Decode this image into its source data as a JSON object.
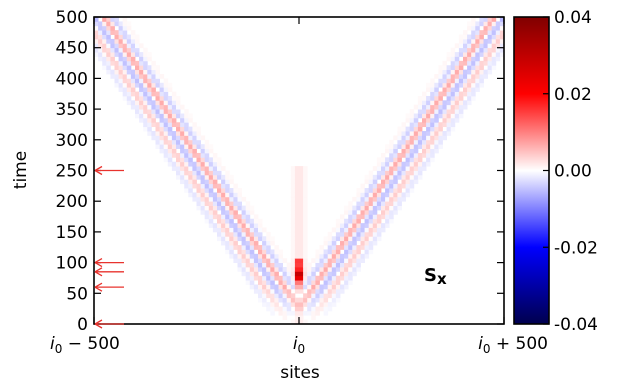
{
  "chart_data": {
    "type": "heatmap",
    "title": "",
    "xlabel": "sites",
    "ylabel": "time",
    "annotation": "S",
    "annotation_subscript": "x",
    "ylim": [
      0,
      500
    ],
    "yticks": [
      0,
      50,
      100,
      150,
      200,
      250,
      300,
      350,
      400,
      450,
      500
    ],
    "xlim": [
      -500,
      500
    ],
    "xticks": [
      {
        "value": -500,
        "base": "i",
        "sub": "0",
        "suffix": " − 500"
      },
      {
        "value": 0,
        "base": "i",
        "sub": "0",
        "suffix": ""
      },
      {
        "value": 500,
        "base": "i",
        "sub": "0",
        "suffix": " + 500"
      }
    ],
    "colorbar": {
      "min": -0.04,
      "max": 0.04,
      "ticks": [
        "0.04",
        "0.02",
        "0.00",
        "-0.02",
        "-0.04"
      ],
      "colors": [
        "#00004d",
        "#0000ff",
        "#ffffff",
        "#ff0000",
        "#800000"
      ]
    },
    "arrows_at_time": [
      0,
      60,
      85,
      100,
      250
    ],
    "arrow_color": "#e8332e",
    "features": {
      "source_site": 0,
      "source_time_range": [
        50,
        110
      ],
      "light_cone_speed": 1.0,
      "reflection_time": 500
    }
  }
}
